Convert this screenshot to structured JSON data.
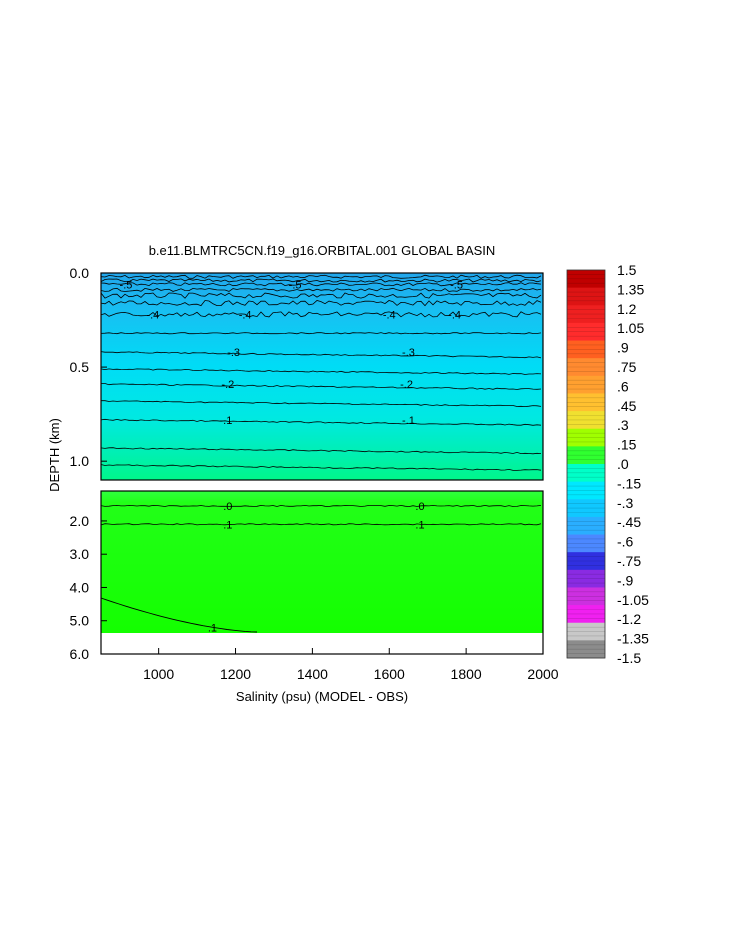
{
  "chart_data": {
    "type": "heatmap",
    "title": "b.e11.BLMTRC5CN.f19_g16.ORBITAL.001 GLOBAL BASIN",
    "xlabel": "Salinity (psu) (MODEL - OBS)",
    "ylabel": "DEPTH (km)",
    "xlim": [
      850,
      2000
    ],
    "x_ticks": [
      "1000",
      "1200",
      "1400",
      "1600",
      "1800",
      "2000"
    ],
    "x_tick_values": [
      1000,
      1200,
      1400,
      1600,
      1800,
      2000
    ],
    "upper_panel": {
      "ylim": [
        0.0,
        1.1
      ],
      "y_ticks": [
        "0.0",
        "0.5",
        "1.0"
      ],
      "y_tick_values": [
        0.0,
        0.5,
        1.0
      ]
    },
    "lower_panel": {
      "ylim": [
        1.1,
        6.0
      ],
      "y_ticks": [
        "2.0",
        "3.0",
        "4.0",
        "5.0",
        "6.0"
      ],
      "y_tick_values": [
        2.0,
        3.0,
        4.0,
        5.0,
        6.0
      ],
      "bottom_depth": 5.35
    },
    "colorbar": {
      "labels": [
        "1.5",
        "1.35",
        "1.2",
        "1.05",
        ".9",
        ".75",
        ".6",
        ".45",
        ".3",
        ".15",
        ".0",
        "-.15",
        "-.3",
        "-.45",
        "-.6",
        "-.75",
        "-.9",
        "-1.05",
        "-1.2",
        "-1.35",
        "-1.5"
      ],
      "values": [
        1.5,
        1.35,
        1.2,
        1.05,
        0.9,
        0.75,
        0.6,
        0.45,
        0.3,
        0.15,
        0.0,
        -0.15,
        -0.3,
        -0.45,
        -0.6,
        -0.75,
        -0.9,
        -1.05,
        -1.2,
        -1.35,
        -1.5
      ],
      "colors": [
        "#c00000",
        "#dd1414",
        "#ee2020",
        "#ff2c2c",
        "#ff6020",
        "#ff8a30",
        "#ffa030",
        "#ffc030",
        "#f0e030",
        "#a0ff00",
        "#30ff30",
        "#00ffc8",
        "#00e8ff",
        "#10c8ff",
        "#2aaeff",
        "#4c88ff",
        "#3030e0",
        "#8a2be2",
        "#cc30e0",
        "#f020f0",
        "#c8c8c8",
        "#8c8c8c"
      ]
    },
    "contours": [
      {
        "label": "-.5",
        "depth": 0.06,
        "label_x": [
          915,
          1355,
          1775
        ]
      },
      {
        "label": "-.4",
        "depth": 0.22,
        "label_x": [
          985,
          1225,
          1600,
          1770
        ]
      },
      {
        "label": "-.3",
        "depth": 0.42,
        "label_x": [
          1195,
          1650
        ]
      },
      {
        "label": "-.2",
        "depth": 0.59,
        "label_x": [
          1180,
          1645
        ]
      },
      {
        "label": "-.1",
        "depth": 0.78,
        "label_x": [
          1175,
          1650
        ]
      },
      {
        "label": ".0",
        "depth": 1.55,
        "label_x": [
          1180,
          1680
        ]
      },
      {
        "label": ".1",
        "depth": 2.1,
        "label_x": [
          1180,
          1680
        ]
      },
      {
        "label": ".1",
        "depth": 5.2,
        "label_x": [
          1140
        ]
      }
    ],
    "contour_line_depths": [
      0.02,
      0.04,
      0.06,
      0.09,
      0.12,
      0.16,
      0.22,
      0.32,
      0.42,
      0.51,
      0.59,
      0.68,
      0.78,
      0.93,
      1.02,
      1.55,
      2.1
    ]
  }
}
